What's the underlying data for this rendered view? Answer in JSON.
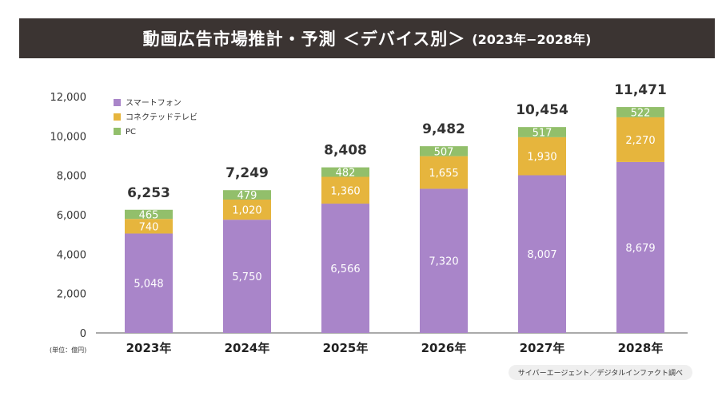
{
  "header": {
    "title": "動画広告市場推計・予測 ＜デバイス別＞",
    "subtitle": "(2023年−2028年)"
  },
  "unit_note": "(単位：億円)",
  "source": "サイバーエージェント／デジタルインファクト調べ",
  "colors": {
    "smartphone": "#a985c9",
    "connected_tv": "#e6b53d",
    "pc": "#92bf6b",
    "title_bg": "#3b3432"
  },
  "chart_data": {
    "type": "bar",
    "stacked": true,
    "categories": [
      "2023年",
      "2024年",
      "2025年",
      "2026年",
      "2027年",
      "2028年"
    ],
    "series": [
      {
        "name": "スマートフォン",
        "values": [
          5048,
          5750,
          6566,
          7320,
          8007,
          8679
        ]
      },
      {
        "name": "コネクテッドテレビ",
        "values": [
          740,
          1020,
          1360,
          1655,
          1930,
          2270
        ]
      },
      {
        "name": "PC",
        "values": [
          465,
          479,
          482,
          507,
          517,
          522
        ]
      }
    ],
    "value_labels": [
      [
        "5,048",
        "5,750",
        "6,566",
        "7,320",
        "8,007",
        "8,679"
      ],
      [
        "740",
        "1,020",
        "1,360",
        "1,655",
        "1,930",
        "2,270"
      ],
      [
        "465",
        "479",
        "482",
        "507",
        "517",
        "522"
      ]
    ],
    "totals": [
      6253,
      7249,
      8408,
      9482,
      10454,
      11471
    ],
    "total_labels": [
      "6,253",
      "7,249",
      "8,408",
      "9,482",
      "10,454",
      "11,471"
    ],
    "ylim": [
      0,
      12000
    ],
    "yticks": [
      0,
      2000,
      4000,
      6000,
      8000,
      10000,
      12000
    ],
    "ytick_labels": [
      "0",
      "2,000",
      "4,000",
      "6,000",
      "8,000",
      "10,000",
      "12,000"
    ],
    "grid": false,
    "legend_position": "top-left"
  }
}
